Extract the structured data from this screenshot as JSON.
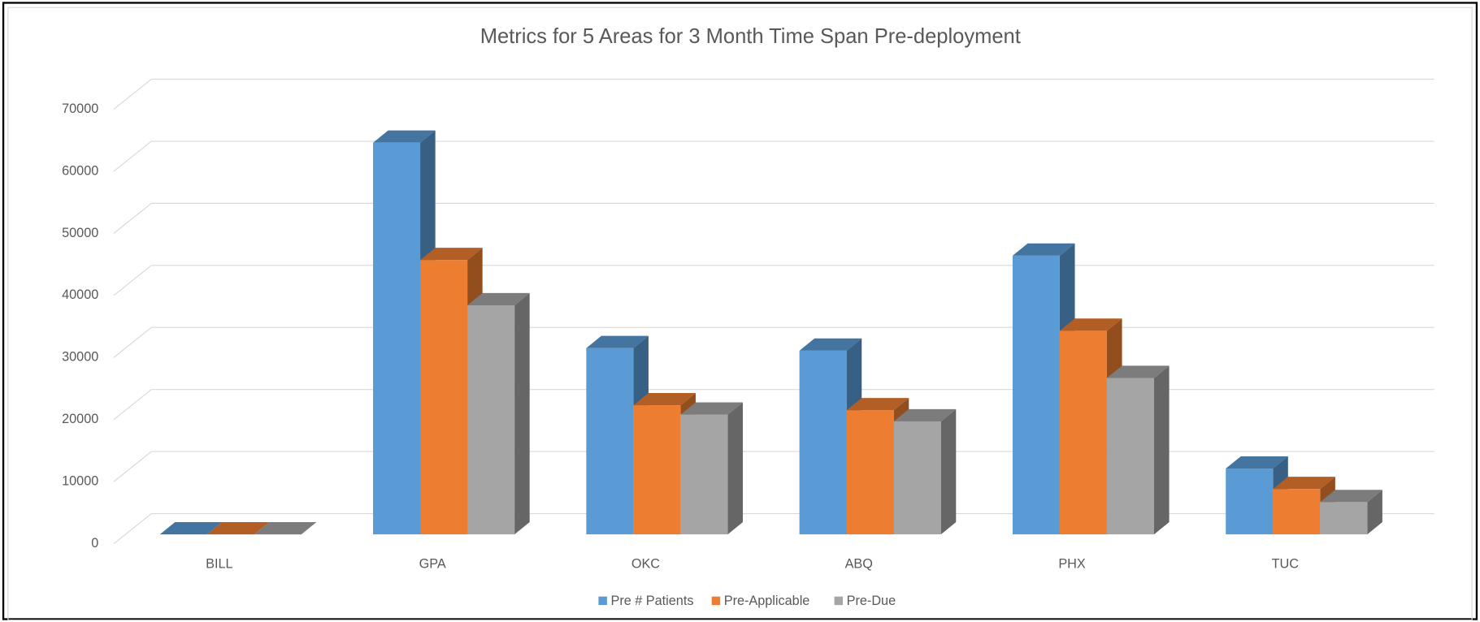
{
  "chart_data": {
    "type": "bar3d",
    "title": "Metrics for 5 Areas for 3 Month Time Span Pre-deployment",
    "categories": [
      "BILL",
      "GPA",
      "OKC",
      "ABQ",
      "PHX",
      "TUC"
    ],
    "series": [
      {
        "name": "Pre # Patients",
        "color": "#5b9bd5",
        "values": [
          0,
          63100,
          30000,
          29600,
          44900,
          10600
        ]
      },
      {
        "name": "Pre-Applicable",
        "color": "#ed7d31",
        "values": [
          0,
          44200,
          20800,
          20000,
          32800,
          7300
        ]
      },
      {
        "name": "Pre-Due",
        "color": "#a5a5a5",
        "values": [
          0,
          36900,
          19300,
          18200,
          25200,
          5200
        ]
      }
    ],
    "ylim": [
      0,
      70000
    ],
    "yticks": [
      0,
      10000,
      20000,
      30000,
      40000,
      50000,
      60000,
      70000
    ],
    "grid": true,
    "legend": "bottom"
  }
}
